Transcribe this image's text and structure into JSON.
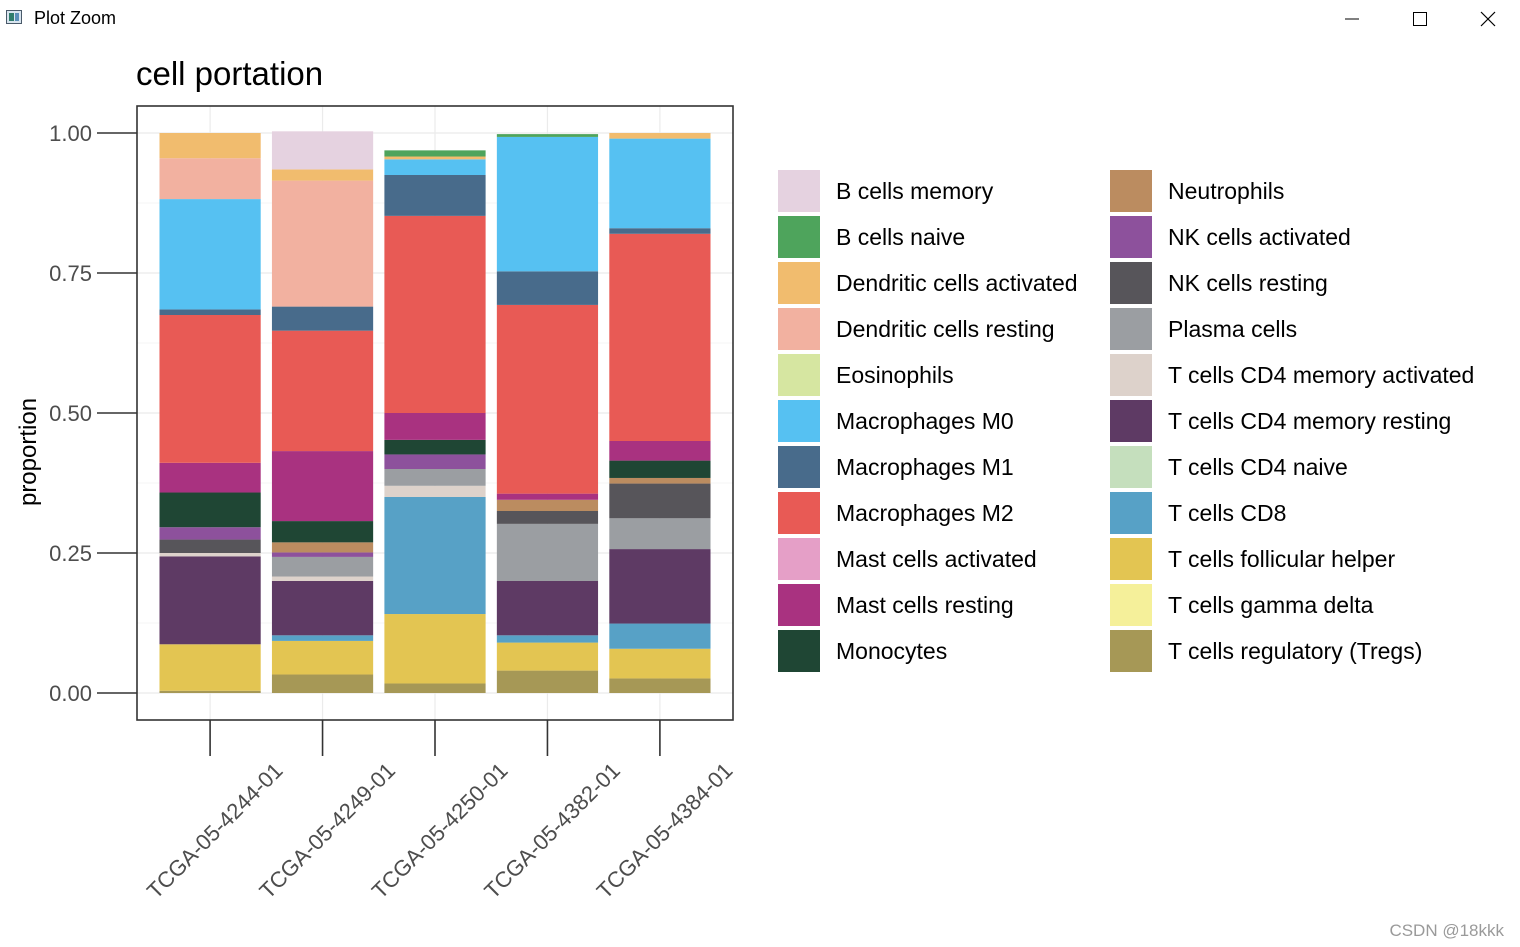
{
  "window": {
    "title": "Plot Zoom",
    "icons": {
      "app": "plot-window-icon",
      "minimize": "minimize-icon",
      "maximize": "maximize-icon",
      "close": "close-icon"
    }
  },
  "watermark": "CSDN @18kkk",
  "chart_data": {
    "type": "bar",
    "stacked": true,
    "title": "cell portation",
    "xlabel": "",
    "ylabel": "proportion",
    "ylim": [
      0,
      1
    ],
    "yticks": [
      "0.00",
      "0.25",
      "0.50",
      "0.75",
      "1.00"
    ],
    "grid": true,
    "legend_position": "right",
    "categories": [
      "TCGA-05-4244-01",
      "TCGA-05-4249-01",
      "TCGA-05-4250-01",
      "TCGA-05-4382-01",
      "TCGA-05-4384-01"
    ],
    "series": [
      {
        "name": "T cells regulatory (Tregs)",
        "color": "#A69856",
        "values": [
          0.004,
          0.033,
          0.017,
          0.04,
          0.026
        ]
      },
      {
        "name": "T cells gamma delta",
        "color": "#F5F09A",
        "values": [
          0,
          0,
          0,
          0,
          0
        ]
      },
      {
        "name": "T cells follicular helper",
        "color": "#E3C552",
        "values": [
          0.083,
          0.06,
          0.124,
          0.05,
          0.053
        ]
      },
      {
        "name": "T cells CD8",
        "color": "#57A1C6",
        "values": [
          0,
          0.01,
          0.209,
          0.013,
          0.045
        ]
      },
      {
        "name": "T cells CD4 naive",
        "color": "#C5DFBD",
        "values": [
          0,
          0,
          0,
          0,
          0
        ]
      },
      {
        "name": "T cells CD4 memory resting",
        "color": "#5E3A64",
        "values": [
          0.157,
          0.097,
          0,
          0.097,
          0.133
        ]
      },
      {
        "name": "T cells CD4 memory activated",
        "color": "#DDD2CB",
        "values": [
          0.006,
          0.008,
          0.02,
          0,
          0
        ]
      },
      {
        "name": "Plasma cells",
        "color": "#9B9EA2",
        "values": [
          0,
          0.035,
          0.03,
          0.102,
          0.055
        ]
      },
      {
        "name": "NK cells resting",
        "color": "#57555A",
        "values": [
          0.024,
          0,
          0,
          0.023,
          0.062
        ]
      },
      {
        "name": "NK cells activated",
        "color": "#8D519C",
        "values": [
          0.022,
          0.008,
          0.026,
          0,
          0
        ]
      },
      {
        "name": "Neutrophils",
        "color": "#BB8C60",
        "values": [
          0,
          0.018,
          0,
          0.02,
          0.01
        ]
      },
      {
        "name": "Monocytes",
        "color": "#1F4634",
        "values": [
          0.062,
          0.038,
          0.026,
          0,
          0.031
        ]
      },
      {
        "name": "Mast cells resting",
        "color": "#A93280",
        "values": [
          0.053,
          0.125,
          0.048,
          0.011,
          0.035
        ]
      },
      {
        "name": "Mast cells activated",
        "color": "#E59FC7",
        "values": [
          0,
          0,
          0,
          0,
          0
        ]
      },
      {
        "name": "Macrophages M2",
        "color": "#E85A55",
        "values": [
          0.264,
          0.215,
          0.352,
          0.337,
          0.37
        ]
      },
      {
        "name": "Macrophages M1",
        "color": "#486B8B",
        "values": [
          0.01,
          0.043,
          0.073,
          0.06,
          0.01
        ]
      },
      {
        "name": "Macrophages M0",
        "color": "#56C1F2",
        "values": [
          0.197,
          0,
          0.028,
          0.24,
          0.16
        ]
      },
      {
        "name": "Eosinophils",
        "color": "#D6E6A1",
        "values": [
          0,
          0,
          0,
          0,
          0
        ]
      },
      {
        "name": "Dendritic cells resting",
        "color": "#F2B1A0",
        "values": [
          0.073,
          0.225,
          0,
          0,
          0
        ]
      },
      {
        "name": "Dendritic cells activated",
        "color": "#F1BC6E",
        "values": [
          0.045,
          0.02,
          0.005,
          0,
          0.01
        ]
      },
      {
        "name": "B cells naive",
        "color": "#4EA45C",
        "values": [
          0,
          0,
          0.011,
          0.005,
          0
        ]
      },
      {
        "name": "B cells memory",
        "color": "#E5D2E0",
        "values": [
          0,
          0.068,
          0,
          0,
          0
        ]
      }
    ],
    "legend_order": [
      "B cells memory",
      "B cells naive",
      "Dendritic cells activated",
      "Dendritic cells resting",
      "Eosinophils",
      "Macrophages M0",
      "Macrophages M1",
      "Macrophages M2",
      "Mast cells activated",
      "Mast cells resting",
      "Monocytes",
      "Neutrophils",
      "NK cells activated",
      "NK cells resting",
      "Plasma cells",
      "T cells CD4 memory activated",
      "T cells CD4 memory resting",
      "T cells CD4 naive",
      "T cells CD8",
      "T cells follicular helper",
      "T cells gamma delta",
      "T cells regulatory (Tregs)"
    ]
  }
}
